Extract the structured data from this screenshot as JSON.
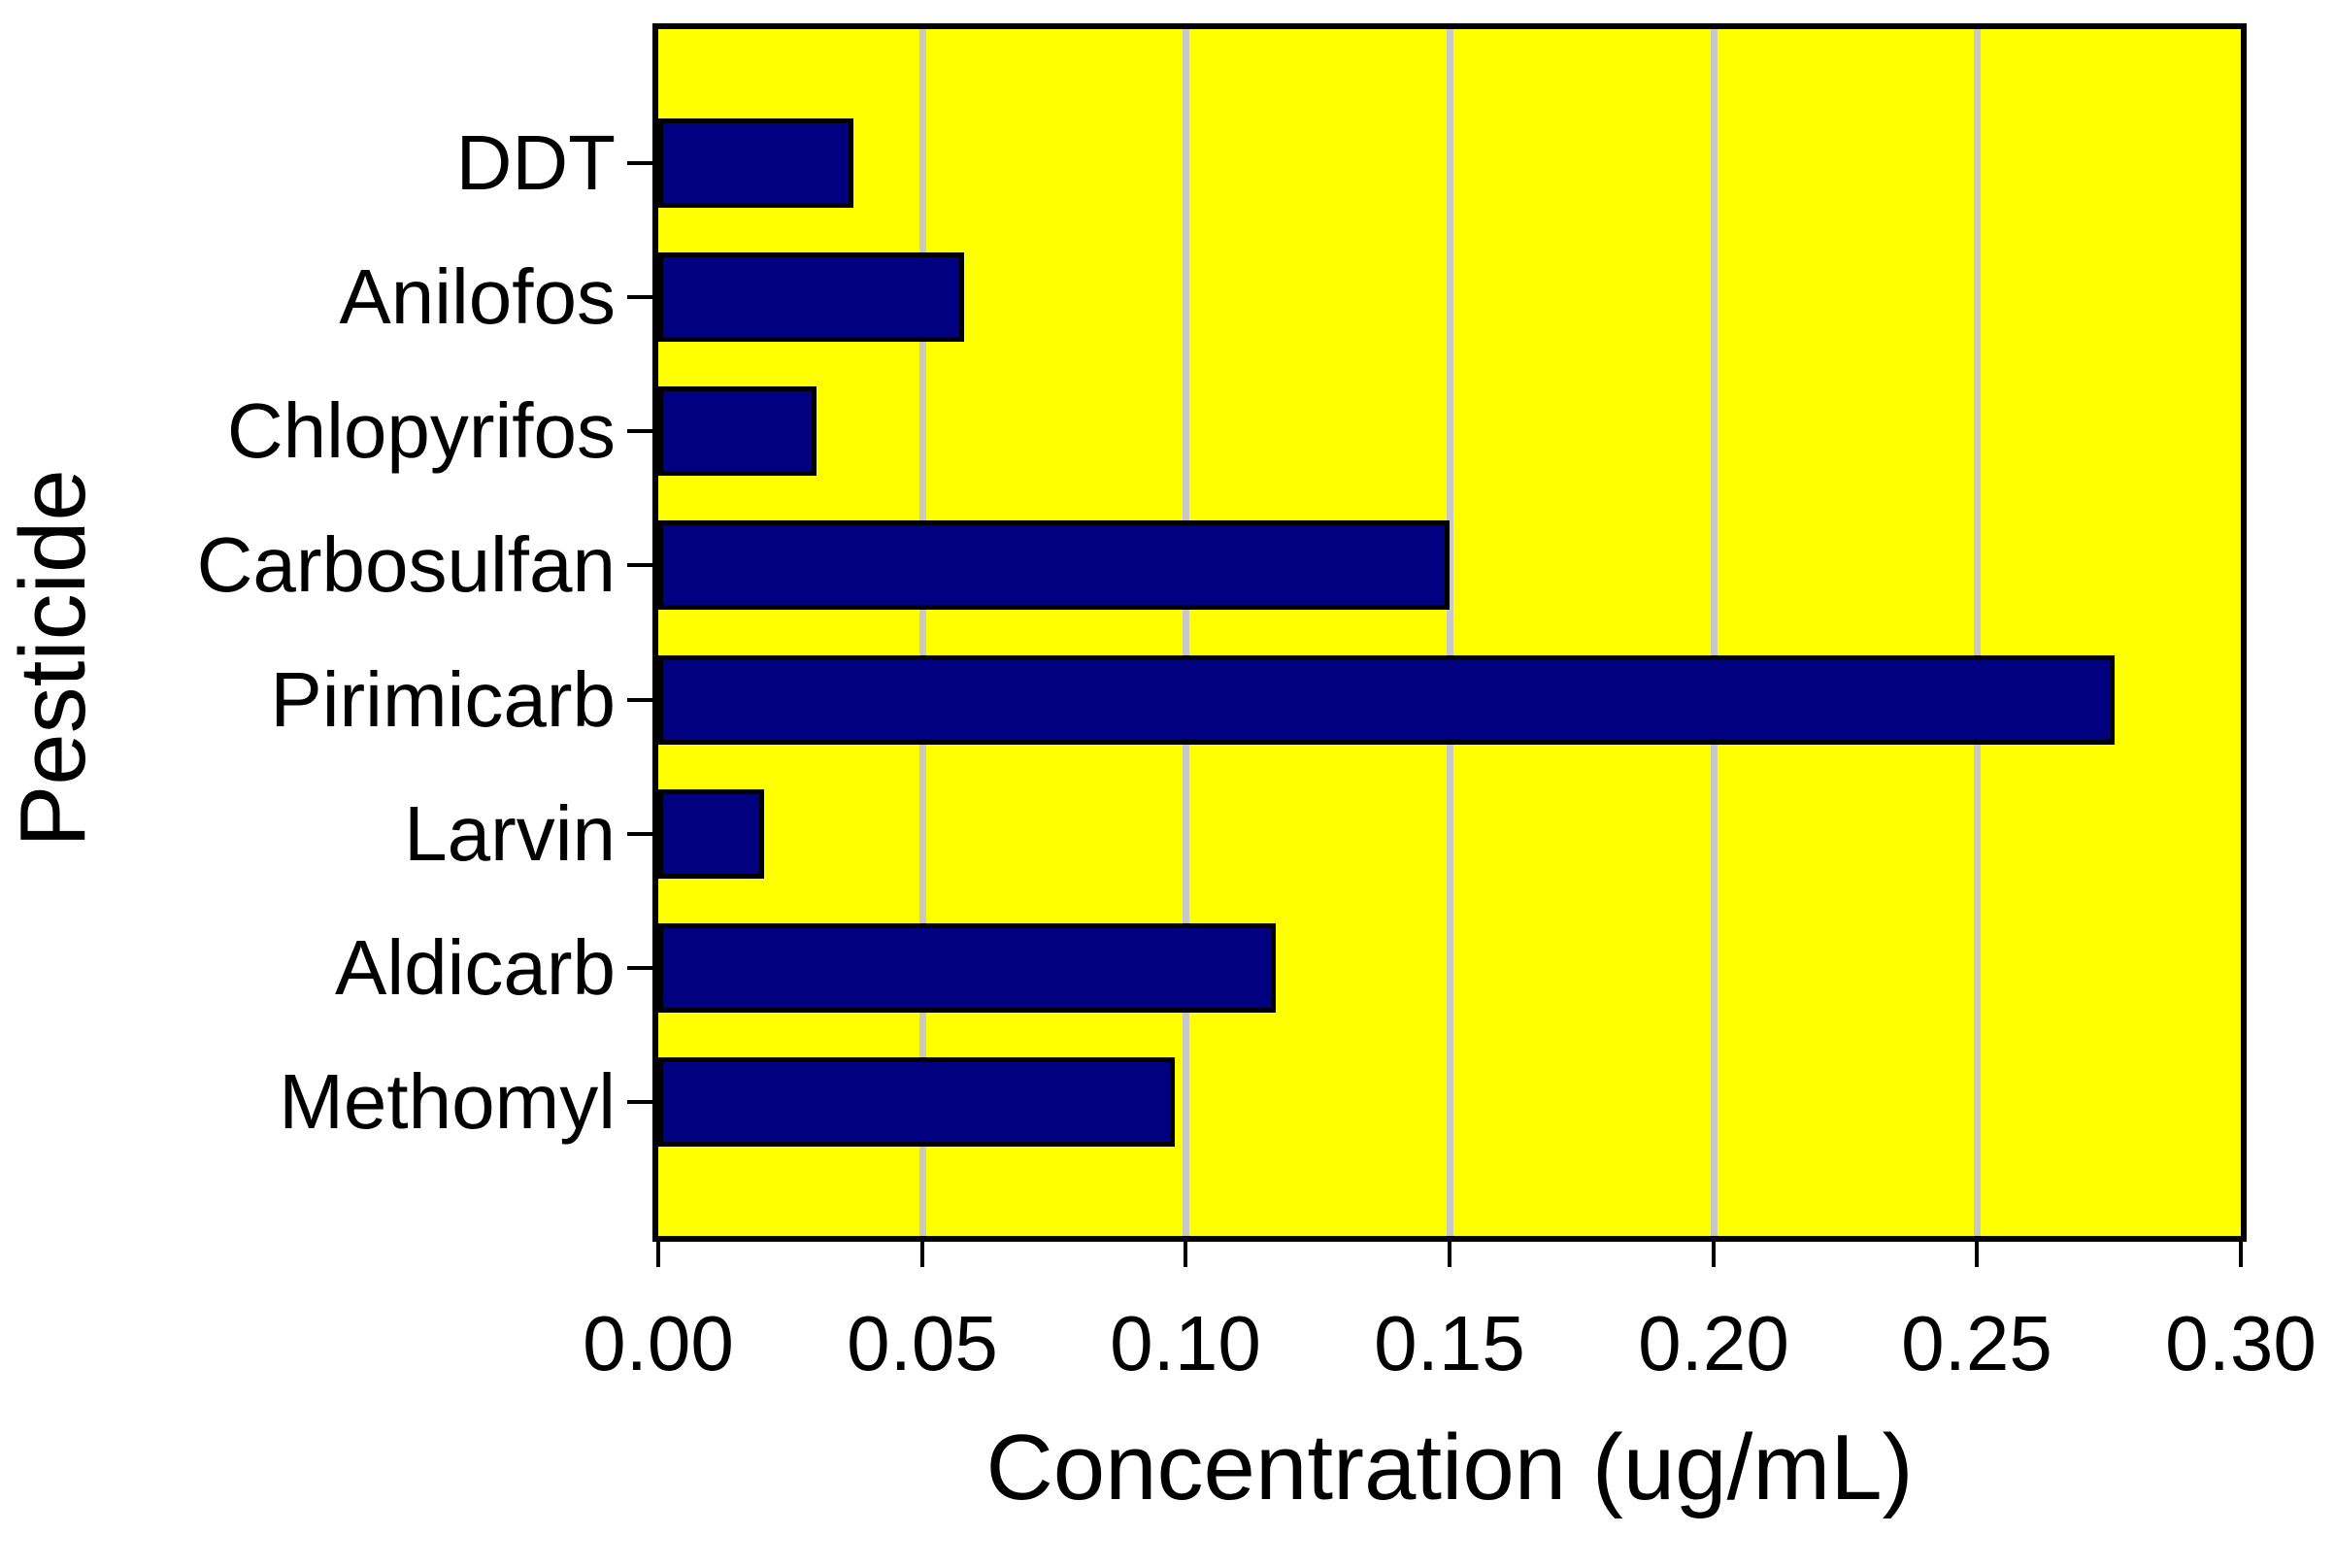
{
  "chart_data": {
    "type": "bar",
    "orientation": "horizontal",
    "title": "",
    "xlabel": "Concentration (ug/mL)",
    "ylabel": "Pesticide",
    "categories": [
      "DDT",
      "Anilofos",
      "Chlopyrifos",
      "Carbosulfan",
      "Pirimicarb",
      "Larvin",
      "Aldicarb",
      "Methomyl"
    ],
    "values": [
      0.037,
      0.058,
      0.03,
      0.15,
      0.276,
      0.02,
      0.117,
      0.098
    ],
    "xlim": [
      0.0,
      0.3
    ],
    "x_ticks": [
      0.0,
      0.05,
      0.1,
      0.15,
      0.2,
      0.25,
      0.3
    ],
    "x_tick_labels": [
      "0.00",
      "0.05",
      "0.10",
      "0.15",
      "0.20",
      "0.25",
      "0.30"
    ],
    "gridlines_vertical_at": [
      0.05,
      0.1,
      0.15,
      0.2,
      0.25
    ],
    "legend": "none",
    "colors": {
      "bar_fill": "#000080",
      "bar_border": "#000000",
      "plot_background": "#FFFF00",
      "gridline": "#C8C8C8",
      "frame": "#000000",
      "text": "#000000",
      "page_background": "#FFFFFF"
    }
  }
}
